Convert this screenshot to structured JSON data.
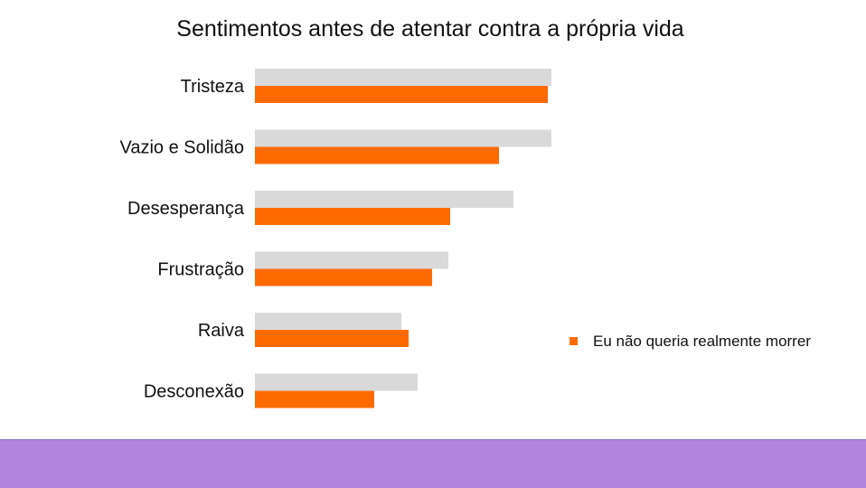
{
  "chart_data": {
    "type": "bar",
    "orientation": "horizontal",
    "title": "Sentimentos antes de atentar contra a própria vida",
    "categories": [
      "Tristeza",
      "Vazio e Solidão",
      "Desesperança",
      "Frustração",
      "Raiva",
      "Desconexão"
    ],
    "series": [
      {
        "color": "#d9d9d9",
        "values": [
          82,
          82,
          71.5,
          53.5,
          40.5,
          45
        ]
      },
      {
        "name": "Eu não queria realmente morrer",
        "color": "#ff6a00",
        "values": [
          81,
          67.5,
          54,
          49,
          42.5,
          33
        ]
      }
    ],
    "xlim": [
      0,
      100
    ],
    "grid": false,
    "legend": {
      "position": "right",
      "entries": [
        "Eu não queria realmente morrer"
      ]
    }
  },
  "footer": {
    "color": "#b185dc"
  }
}
